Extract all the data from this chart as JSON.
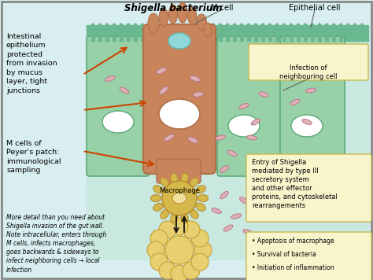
{
  "bg_color": "#d8eef0",
  "bg_color_white": "#f0f0f0",
  "cell_wall_color": "#6ab890",
  "cell_interior_color": "#98d0a8",
  "cell_border_color": "#5aaa78",
  "m_cell_color": "#c8845a",
  "m_cell_light": "#d4956a",
  "m_cell_dark": "#b07048",
  "nucleus_color": "#ffffff",
  "macrophage_color": "#d4b84a",
  "macrophage_light": "#e8d070",
  "macrophage_burst_color": "#e8d070",
  "bacteria_color": "#e0b0b8",
  "bacteria_border": "#b87888",
  "arrow_color": "#cc4400",
  "dark_arrow_color": "#111111",
  "box_color": "#f8f4cc",
  "box_border": "#c8b850",
  "title": "Shigella bacterium",
  "label_mcell": "M cell",
  "label_epithelial": "Epithelial cell",
  "label_macrophage": "Macrophage",
  "text_left1": "Intestinal\nepithelium\nprotected\nfrom invasion\nby mucus\nlayer, tight\njunctions",
  "text_left2": "M cells of\nPeyer's patch:\nimmunological\nsampling",
  "text_bottom_left": "More detail than you need about\nShigella invasion of the gut wall.\nNote intracellular, enters through\nM cells, infects macrophages,\ngoes backwards & sideways to\ninfect neighboring cells → local\ninfection",
  "text_box_right_top": "Infection of\nneighbouring cell",
  "text_box_right_bottom": "Entry of Shigella\nmediated by type III\nsecretory system\nand other effector\nproteins, and cytoskeletal\nrearrangements",
  "text_bullets": [
    "Apoptosis of macrophage",
    "Survival of bacteria",
    "Initiation of inflammation"
  ],
  "figsize": [
    4.74,
    3.56
  ],
  "dpi": 100
}
